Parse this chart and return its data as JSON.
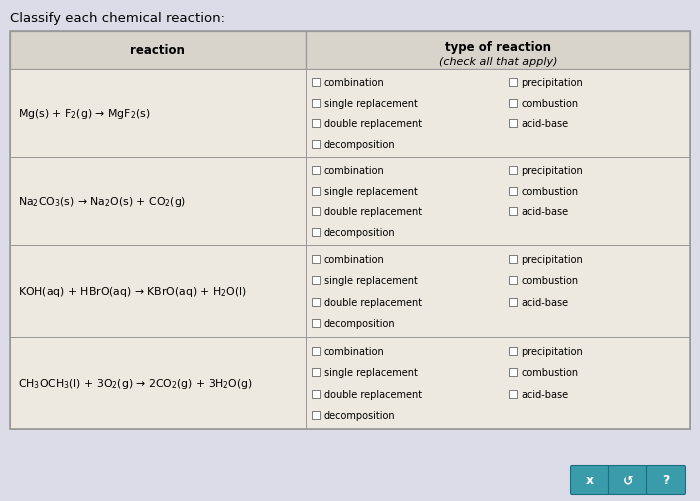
{
  "title": "Classify each chemical reaction:",
  "bg_color": "#dcdce8",
  "table_bg": "#ede8e0",
  "header_bg": "#d8d4cc",
  "border_color": "#999999",
  "col1_header": "reaction",
  "col2_header_line1": "type of reaction",
  "col2_header_line2": "(check all that apply)",
  "reaction_latex": [
    "Mg(s) + F$_2$(g) → MgF$_2$(s)",
    "Na$_2$CO$_3$(s) → Na$_2$O(s) + CO$_2$(g)",
    "KOH(aq) + HBrO(aq) → KBrO(aq) + H$_2$O(l)",
    "CH$_3$OCH$_3$(l) + 3O$_2$(g) → 2CO$_2$(g) + 3H$_2$O(g)"
  ],
  "checkboxes_left": [
    "combination",
    "single replacement",
    "double replacement",
    "decomposition"
  ],
  "checkboxes_right": [
    "precipitation",
    "combustion",
    "acid-base"
  ],
  "button_color": "#3a9baa",
  "button_labels": [
    "x",
    "↺",
    "?"
  ],
  "title_fontsize": 9.5,
  "header_fontsize": 8.5,
  "reaction_fontsize": 7.8,
  "checkbox_fontsize": 7.0
}
